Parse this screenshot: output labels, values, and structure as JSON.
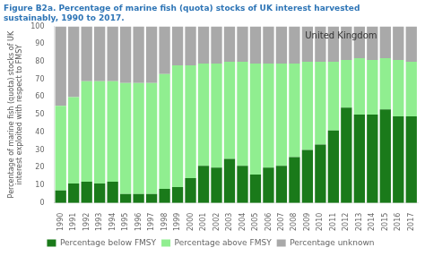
{
  "chart_data": {
    "type": "bar",
    "stacked": true,
    "title": "Figure B2a. Percentage of marine fish (quota) stocks of UK interest harvested\nsustainably, 1990 to 2017.",
    "ylabel": "Percentage of marine fish (quota) stocks of UK\ninterest exploited with respect to FMSY",
    "annotation": "United Kingdom",
    "categories": [
      1990,
      1991,
      1992,
      1993,
      1994,
      1995,
      1996,
      1997,
      1998,
      1999,
      2000,
      2001,
      2002,
      2003,
      2004,
      2005,
      2006,
      2007,
      2008,
      2009,
      2010,
      2011,
      2012,
      2013,
      2014,
      2015,
      2016,
      2017
    ],
    "series": [
      {
        "name": "Percentage below FMSY",
        "color": "#1a7a1a",
        "values": [
          7,
          11,
          12,
          11,
          12,
          5,
          5,
          5,
          8,
          9,
          14,
          21,
          20,
          25,
          21,
          16,
          20,
          21,
          26,
          30,
          33,
          41,
          54,
          50,
          50,
          53,
          49,
          49
        ]
      },
      {
        "name": "Percentage above FMSY",
        "color": "#90ee90",
        "values": [
          48,
          49,
          57,
          58,
          57,
          63,
          63,
          63,
          65,
          69,
          64,
          58,
          59,
          55,
          59,
          63,
          59,
          58,
          53,
          50,
          47,
          39,
          27,
          32,
          31,
          29,
          32,
          31
        ]
      },
      {
        "name": "Percentage unknown",
        "color": "#a9a9a9",
        "values": [
          45,
          40,
          31,
          31,
          31,
          32,
          32,
          32,
          27,
          22,
          22,
          21,
          21,
          20,
          20,
          21,
          21,
          21,
          21,
          20,
          20,
          20,
          19,
          18,
          19,
          18,
          19,
          20
        ]
      }
    ],
    "ylim": [
      0,
      100
    ],
    "yticks": [
      0,
      10,
      20,
      30,
      40,
      50,
      60,
      70,
      80,
      90,
      100
    ],
    "grid": false,
    "legend": "bottom"
  }
}
